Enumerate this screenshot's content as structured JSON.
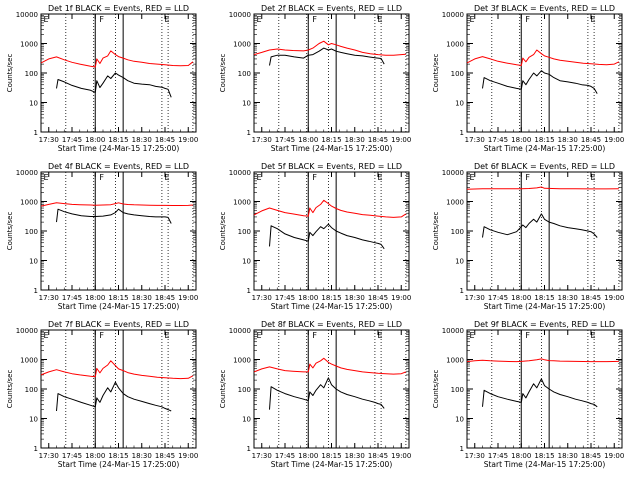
{
  "colors": {
    "events": "#000000",
    "lld": "#ff0000",
    "axis": "#000000",
    "background": "#ffffff"
  },
  "ylabel": "Counts/sec",
  "xlabel": "Start Time (24-Mar-15 17:25:00)",
  "xticks": [
    {
      "t": 5,
      "label": "17:30"
    },
    {
      "t": 20,
      "label": "17:45"
    },
    {
      "t": 35,
      "label": "18:00"
    },
    {
      "t": 50,
      "label": "18:15"
    },
    {
      "t": 65,
      "label": "18:30"
    },
    {
      "t": 80,
      "label": "18:45"
    },
    {
      "t": 95,
      "label": "19:00"
    }
  ],
  "yticks": [
    {
      "v": 1,
      "label": "1"
    },
    {
      "v": 10,
      "label": "10"
    },
    {
      "v": 100,
      "label": "100"
    },
    {
      "v": 1000,
      "label": "1000"
    },
    {
      "v": 10000,
      "label": "10000"
    }
  ],
  "markers": {
    "dotted": [
      16,
      34,
      48,
      78,
      82,
      98
    ],
    "solid": [
      35,
      53
    ],
    "labels": [
      {
        "t": 1,
        "text": "E"
      },
      {
        "t": 37,
        "text": "F"
      },
      {
        "t": 79,
        "text": "E"
      }
    ]
  },
  "chart_data": [
    {
      "type": "line",
      "title": "Det 1f BLACK = Events, RED = LLD",
      "x_units": "minutes since start",
      "xlim": [
        0,
        100
      ],
      "ylim": [
        1,
        10000
      ],
      "yscale": "log",
      "series": [
        {
          "name": "Events",
          "color": "#000000",
          "x": [
            10,
            11,
            15,
            20,
            26,
            32,
            35,
            36,
            38,
            40,
            43,
            45,
            48,
            50,
            53,
            56,
            60,
            65,
            70,
            74,
            78,
            80,
            82,
            84
          ],
          "y": [
            30,
            60,
            50,
            38,
            30,
            26,
            22,
            55,
            32,
            45,
            80,
            65,
            100,
            85,
            70,
            55,
            45,
            42,
            40,
            35,
            33,
            30,
            28,
            15
          ]
        },
        {
          "name": "LLD",
          "color": "#ff0000",
          "x": [
            0,
            5,
            10,
            15,
            20,
            25,
            32,
            35,
            36,
            38,
            40,
            43,
            45,
            48,
            50,
            53,
            56,
            60,
            65,
            70,
            75,
            80,
            85,
            90,
            95,
            98
          ],
          "y": [
            220,
            300,
            350,
            280,
            230,
            200,
            170,
            160,
            300,
            210,
            320,
            380,
            560,
            420,
            360,
            320,
            280,
            250,
            230,
            210,
            200,
            190,
            180,
            175,
            180,
            240
          ]
        }
      ]
    },
    {
      "type": "line",
      "title": "Det 2f BLACK = Events, RED = LLD",
      "x_units": "minutes since start",
      "xlim": [
        0,
        100
      ],
      "ylim": [
        1,
        10000
      ],
      "yscale": "log",
      "series": [
        {
          "name": "Events",
          "color": "#000000",
          "x": [
            10,
            11,
            15,
            20,
            26,
            32,
            35,
            38,
            42,
            45,
            48,
            50,
            53,
            56,
            60,
            65,
            70,
            74,
            78,
            80,
            82,
            84
          ],
          "y": [
            180,
            350,
            400,
            400,
            350,
            320,
            400,
            420,
            550,
            700,
            600,
            650,
            550,
            500,
            450,
            400,
            380,
            350,
            330,
            320,
            310,
            200
          ]
        },
        {
          "name": "LLD",
          "color": "#ff0000",
          "x": [
            0,
            5,
            10,
            15,
            20,
            25,
            32,
            35,
            38,
            42,
            45,
            48,
            50,
            53,
            56,
            60,
            65,
            70,
            75,
            80,
            85,
            90,
            95,
            98
          ],
          "y": [
            420,
            500,
            600,
            650,
            600,
            580,
            560,
            600,
            700,
            1000,
            1200,
            900,
            1000,
            900,
            800,
            700,
            600,
            500,
            450,
            420,
            400,
            400,
            420,
            430
          ]
        }
      ]
    },
    {
      "type": "line",
      "title": "Det 3f BLACK = Events, RED = LLD",
      "x_units": "minutes since start",
      "xlim": [
        0,
        100
      ],
      "ylim": [
        1,
        10000
      ],
      "yscale": "log",
      "series": [
        {
          "name": "Events",
          "color": "#000000",
          "x": [
            10,
            11,
            15,
            20,
            26,
            32,
            35,
            36,
            38,
            40,
            43,
            45,
            48,
            50,
            53,
            56,
            60,
            65,
            70,
            74,
            78,
            80,
            82,
            84
          ],
          "y": [
            30,
            70,
            55,
            45,
            35,
            30,
            28,
            55,
            40,
            60,
            100,
            80,
            120,
            100,
            90,
            70,
            55,
            50,
            45,
            40,
            38,
            35,
            30,
            20
          ]
        },
        {
          "name": "LLD",
          "color": "#ff0000",
          "x": [
            0,
            5,
            10,
            15,
            20,
            25,
            32,
            35,
            36,
            38,
            40,
            43,
            45,
            48,
            50,
            53,
            56,
            60,
            65,
            70,
            75,
            80,
            85,
            90,
            95,
            98
          ],
          "y": [
            220,
            300,
            360,
            300,
            250,
            220,
            190,
            180,
            320,
            240,
            340,
            420,
            600,
            450,
            380,
            340,
            300,
            270,
            250,
            230,
            215,
            205,
            195,
            190,
            200,
            240
          ]
        }
      ]
    },
    {
      "type": "line",
      "title": "Det 4f BLACK = Events, RED = LLD",
      "x_units": "minutes since start",
      "xlim": [
        0,
        100
      ],
      "ylim": [
        1,
        10000
      ],
      "yscale": "log",
      "series": [
        {
          "name": "Events",
          "color": "#000000",
          "x": [
            10,
            11,
            15,
            20,
            26,
            32,
            35,
            40,
            45,
            48,
            50,
            53,
            56,
            60,
            65,
            70,
            74,
            78,
            80,
            82,
            84
          ],
          "y": [
            200,
            550,
            450,
            380,
            330,
            310,
            310,
            320,
            350,
            420,
            550,
            420,
            380,
            350,
            330,
            310,
            300,
            300,
            300,
            290,
            180
          ]
        },
        {
          "name": "LLD",
          "color": "#ff0000",
          "x": [
            0,
            5,
            10,
            15,
            20,
            25,
            32,
            35,
            40,
            45,
            48,
            50,
            53,
            56,
            60,
            65,
            70,
            75,
            80,
            85,
            90,
            95,
            98
          ],
          "y": [
            700,
            800,
            900,
            850,
            800,
            780,
            760,
            750,
            760,
            780,
            850,
            900,
            820,
            790,
            770,
            760,
            750,
            740,
            740,
            730,
            730,
            740,
            760
          ]
        }
      ]
    },
    {
      "type": "line",
      "title": "Det 5f BLACK = Events, RED = LLD",
      "x_units": "minutes since start",
      "xlim": [
        0,
        100
      ],
      "ylim": [
        1,
        10000
      ],
      "yscale": "log",
      "series": [
        {
          "name": "Events",
          "color": "#000000",
          "x": [
            10,
            11,
            15,
            20,
            26,
            32,
            35,
            36,
            38,
            40,
            43,
            45,
            48,
            50,
            53,
            56,
            60,
            65,
            70,
            74,
            78,
            80,
            82,
            84
          ],
          "y": [
            30,
            150,
            120,
            80,
            60,
            50,
            45,
            90,
            70,
            95,
            140,
            120,
            170,
            130,
            100,
            85,
            70,
            60,
            50,
            45,
            40,
            38,
            35,
            25
          ]
        },
        {
          "name": "LLD",
          "color": "#ff0000",
          "x": [
            0,
            5,
            10,
            15,
            20,
            25,
            32,
            35,
            36,
            38,
            40,
            43,
            45,
            48,
            50,
            53,
            56,
            60,
            65,
            70,
            75,
            80,
            85,
            90,
            95,
            98
          ],
          "y": [
            350,
            480,
            600,
            500,
            420,
            380,
            330,
            320,
            600,
            420,
            620,
            800,
            1100,
            850,
            700,
            580,
            500,
            440,
            400,
            360,
            340,
            320,
            300,
            290,
            300,
            380
          ]
        }
      ]
    },
    {
      "type": "line",
      "title": "Det 6f BLACK = Events, RED = LLD",
      "x_units": "minutes since start",
      "xlim": [
        0,
        100
      ],
      "ylim": [
        1,
        10000
      ],
      "yscale": "log",
      "series": [
        {
          "name": "Events",
          "color": "#000000",
          "x": [
            10,
            11,
            15,
            20,
            26,
            32,
            35,
            36,
            38,
            40,
            43,
            45,
            48,
            50,
            53,
            56,
            60,
            65,
            70,
            74,
            78,
            80,
            82,
            84
          ],
          "y": [
            60,
            140,
            110,
            90,
            75,
            95,
            140,
            160,
            130,
            180,
            250,
            200,
            380,
            250,
            200,
            180,
            150,
            130,
            120,
            110,
            100,
            95,
            80,
            60
          ]
        },
        {
          "name": "LLD",
          "color": "#ff0000",
          "x": [
            0,
            10,
            20,
            30,
            35,
            40,
            45,
            48,
            50,
            55,
            60,
            70,
            80,
            90,
            98
          ],
          "y": [
            2600,
            2700,
            2700,
            2700,
            2700,
            2750,
            2900,
            3100,
            2800,
            2750,
            2700,
            2700,
            2680,
            2680,
            2700
          ]
        }
      ]
    },
    {
      "type": "line",
      "title": "Det 7f BLACK = Events, RED = LLD",
      "x_units": "minutes since start",
      "xlim": [
        0,
        100
      ],
      "ylim": [
        1,
        10000
      ],
      "yscale": "log",
      "series": [
        {
          "name": "Events",
          "color": "#000000",
          "x": [
            10,
            11,
            15,
            20,
            26,
            32,
            35,
            36,
            38,
            40,
            43,
            45,
            48,
            50,
            53,
            56,
            60,
            65,
            70,
            74,
            78,
            80,
            82,
            84
          ],
          "y": [
            18,
            70,
            55,
            45,
            35,
            28,
            25,
            50,
            35,
            60,
            110,
            80,
            170,
            110,
            70,
            55,
            45,
            38,
            32,
            28,
            25,
            22,
            20,
            18
          ]
        },
        {
          "name": "LLD",
          "color": "#ff0000",
          "x": [
            0,
            5,
            10,
            15,
            20,
            25,
            32,
            35,
            36,
            38,
            40,
            43,
            45,
            48,
            50,
            53,
            56,
            60,
            65,
            70,
            75,
            80,
            85,
            90,
            95,
            98
          ],
          "y": [
            300,
            380,
            450,
            380,
            330,
            300,
            270,
            260,
            500,
            350,
            500,
            650,
            900,
            620,
            480,
            420,
            360,
            320,
            290,
            270,
            250,
            240,
            230,
            225,
            230,
            280
          ]
        }
      ]
    },
    {
      "type": "line",
      "title": "Det 8f BLACK = Events, RED = LLD",
      "x_units": "minutes since start",
      "xlim": [
        0,
        100
      ],
      "ylim": [
        1,
        10000
      ],
      "yscale": "log",
      "series": [
        {
          "name": "Events",
          "color": "#000000",
          "x": [
            10,
            11,
            15,
            20,
            26,
            32,
            35,
            36,
            38,
            40,
            43,
            45,
            48,
            50,
            53,
            56,
            60,
            65,
            70,
            74,
            78,
            80,
            82,
            84
          ],
          "y": [
            20,
            120,
            90,
            70,
            55,
            45,
            40,
            80,
            60,
            90,
            140,
            110,
            240,
            140,
            100,
            80,
            65,
            55,
            45,
            40,
            35,
            32,
            30,
            22
          ]
        },
        {
          "name": "LLD",
          "color": "#ff0000",
          "x": [
            0,
            5,
            10,
            15,
            20,
            25,
            32,
            35,
            36,
            38,
            40,
            43,
            45,
            48,
            50,
            53,
            56,
            60,
            65,
            70,
            75,
            80,
            85,
            90,
            95,
            98
          ],
          "y": [
            380,
            480,
            560,
            480,
            420,
            400,
            380,
            380,
            700,
            520,
            750,
            900,
            1100,
            800,
            700,
            600,
            520,
            460,
            420,
            380,
            360,
            340,
            330,
            320,
            330,
            380
          ]
        }
      ]
    },
    {
      "type": "line",
      "title": "Det 9f BLACK = Events, RED = LLD",
      "x_units": "minutes since start",
      "xlim": [
        0,
        100
      ],
      "ylim": [
        1,
        10000
      ],
      "yscale": "log",
      "series": [
        {
          "name": "Events",
          "color": "#000000",
          "x": [
            10,
            11,
            15,
            20,
            26,
            32,
            35,
            36,
            38,
            40,
            43,
            45,
            48,
            50,
            53,
            56,
            60,
            65,
            70,
            74,
            78,
            80,
            82,
            84
          ],
          "y": [
            25,
            90,
            70,
            55,
            45,
            38,
            35,
            70,
            50,
            80,
            150,
            110,
            220,
            130,
            100,
            80,
            65,
            55,
            45,
            40,
            35,
            32,
            30,
            25
          ]
        },
        {
          "name": "LLD",
          "color": "#ff0000",
          "x": [
            0,
            5,
            10,
            15,
            20,
            25,
            32,
            35,
            40,
            45,
            48,
            50,
            53,
            56,
            60,
            70,
            80,
            90,
            98
          ],
          "y": [
            850,
            900,
            950,
            900,
            880,
            860,
            850,
            860,
            900,
            980,
            1050,
            980,
            920,
            900,
            880,
            860,
            850,
            850,
            860
          ]
        }
      ]
    }
  ]
}
